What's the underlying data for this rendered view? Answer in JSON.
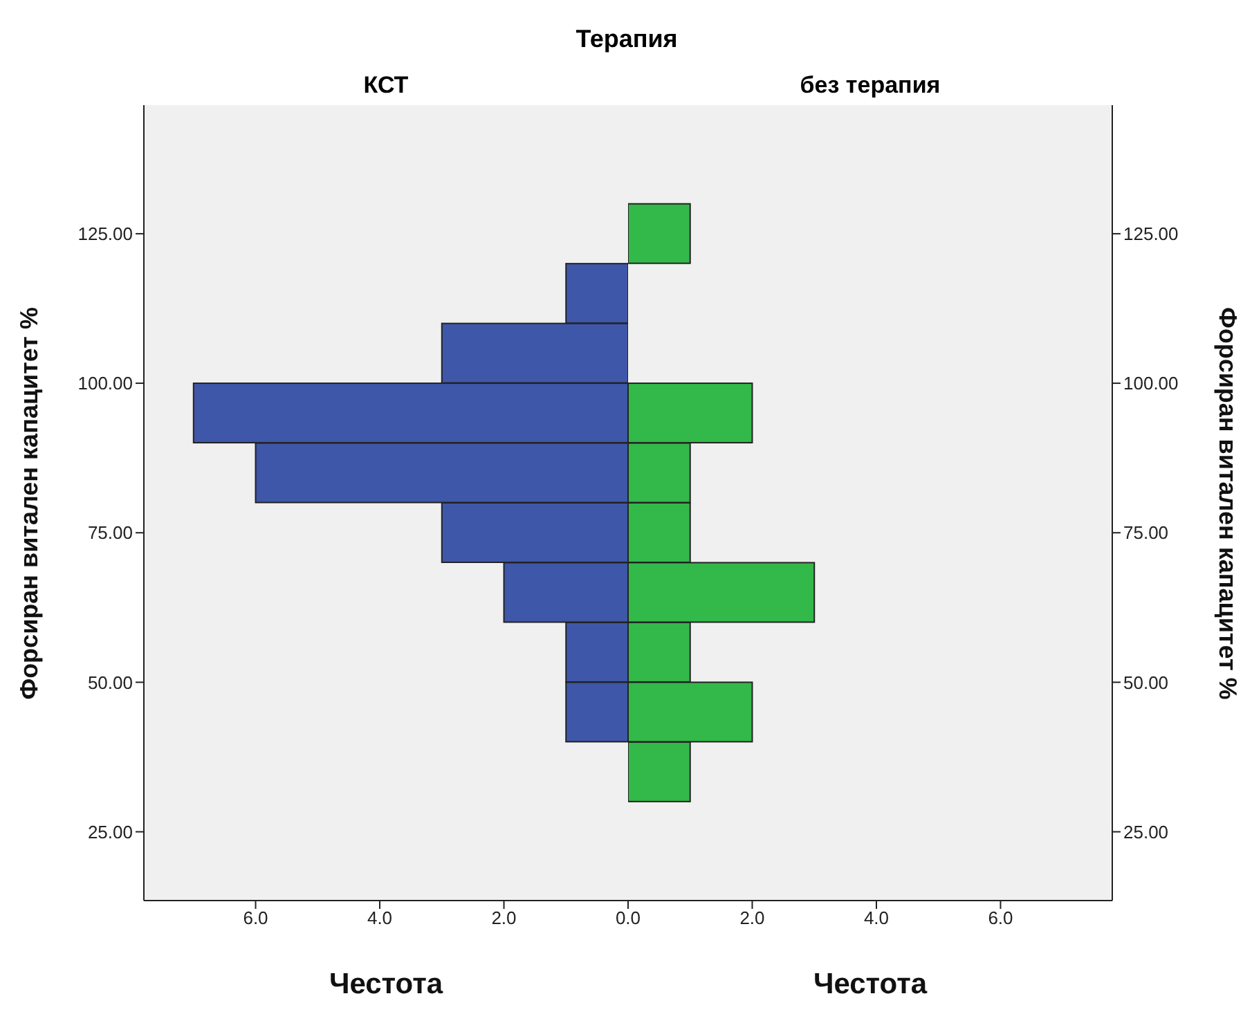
{
  "chart_data": [
    {
      "type": "histogram",
      "orientation": "horizontal",
      "title": "Терапия",
      "subtitle": "КСТ",
      "xlabel": "Честота",
      "ylabel": "Форсиран витален капацитет %",
      "color": "#3f57a8",
      "bins": [
        40,
        50,
        60,
        70,
        80,
        90,
        100,
        110,
        120
      ],
      "values": [
        1,
        1,
        2,
        3,
        6,
        7,
        3,
        1
      ],
      "xlim": [
        7.8,
        0
      ],
      "xticks": [
        {
          "value": 6,
          "label": "6.0"
        },
        {
          "value": 4,
          "label": "4.0"
        },
        {
          "value": 2,
          "label": "2.0"
        }
      ],
      "ylim": [
        13.5,
        146.5
      ],
      "yticks": [
        {
          "value": 25,
          "label": "25.00"
        },
        {
          "value": 50,
          "label": "50.00"
        },
        {
          "value": 75,
          "label": "75.00"
        },
        {
          "value": 100,
          "label": "100.00"
        },
        {
          "value": 125,
          "label": "125.00"
        }
      ],
      "grid": false,
      "legend": false
    },
    {
      "type": "histogram",
      "orientation": "horizontal",
      "subtitle": "без терапия",
      "xlabel": "Честота",
      "ylabel": "Форсиран витален капацитет %",
      "color": "#33b84a",
      "bins": [
        30,
        40,
        50,
        60,
        70,
        80,
        90,
        100,
        110,
        120,
        130
      ],
      "values": [
        1,
        2,
        1,
        3,
        1,
        1,
        2,
        0,
        0,
        1
      ],
      "xlim": [
        0,
        7.8
      ],
      "xticks": [
        {
          "value": 0,
          "label": "0.0"
        },
        {
          "value": 2,
          "label": "2.0"
        },
        {
          "value": 4,
          "label": "4.0"
        },
        {
          "value": 6,
          "label": "6.0"
        }
      ],
      "ylim": [
        13.5,
        146.5
      ],
      "yticks": [
        {
          "value": 25,
          "label": "25.00"
        },
        {
          "value": 50,
          "label": "50.00"
        },
        {
          "value": 75,
          "label": "75.00"
        },
        {
          "value": 100,
          "label": "100.00"
        },
        {
          "value": 125,
          "label": "125.00"
        }
      ],
      "grid": false,
      "legend": false
    }
  ]
}
